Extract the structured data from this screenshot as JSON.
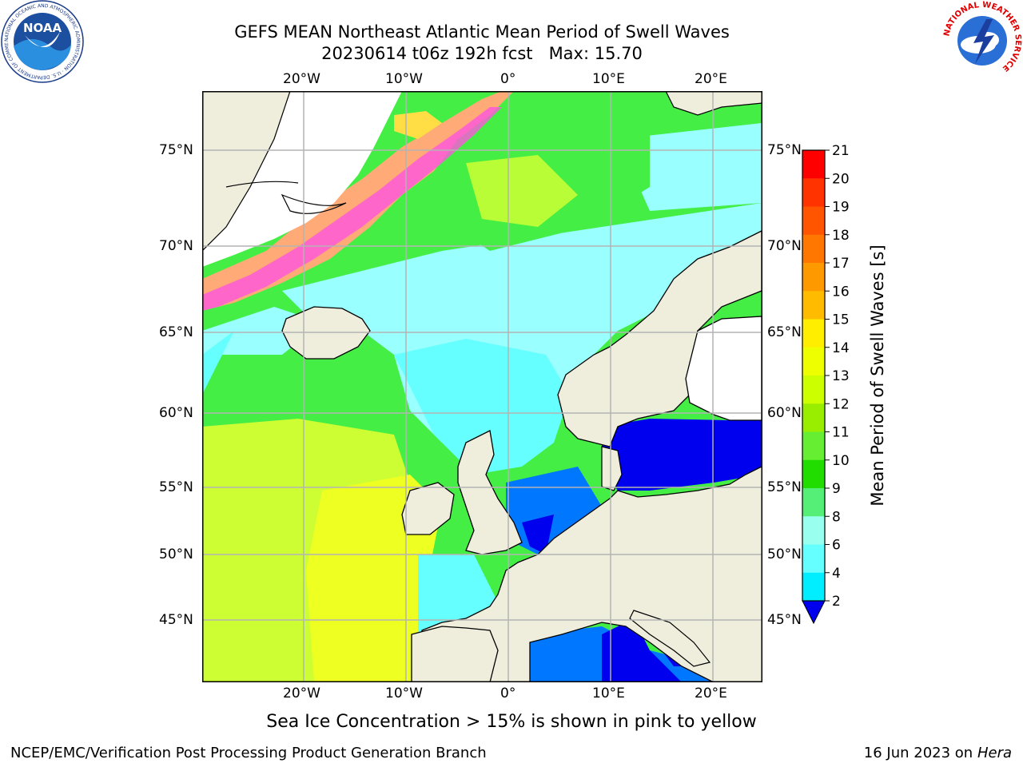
{
  "header": {
    "title_line1": "GEFS MEAN Northeast Atlantic Mean Period of Swell Waves",
    "title_line2": "20230614 t06z 192h fcst   Max: 15.70"
  },
  "logos": {
    "left": {
      "name": "noaa-logo",
      "text": "NOAA",
      "ring_text": "NATIONAL OCEANIC AND ATMOSPHERIC ADMINISTRATION · U.S. DEPARTMENT OF COMMERCE"
    },
    "right": {
      "name": "nws-logo",
      "ring_text": "NATIONAL WEATHER SERVICE"
    }
  },
  "map": {
    "lon_ticks_top": [
      "20°W",
      "10°W",
      "0°",
      "10°E",
      "20°E"
    ],
    "lon_ticks_bottom": [
      "20°W",
      "10°W",
      "0°",
      "10°E",
      "20°E"
    ],
    "lat_ticks_left": [
      "75°N",
      "70°N",
      "65°N",
      "60°N",
      "55°N",
      "50°N",
      "45°N"
    ],
    "lat_ticks_right": [
      "75°N",
      "70°N",
      "65°N",
      "60°N",
      "55°N",
      "50°N",
      "45°N"
    ],
    "land_color": "#efeedd",
    "grid_color": "#b4b4b4"
  },
  "colorbar": {
    "label": "Mean Period of Swell Waves [s]",
    "ticks": [
      "21",
      "20",
      "19",
      "18",
      "17",
      "16",
      "15",
      "14",
      "13",
      "12",
      "11",
      "10",
      "9",
      "8",
      "6",
      "4",
      "2"
    ],
    "colors": [
      "#ff0000",
      "#ff3300",
      "#ff5500",
      "#ff7700",
      "#ff9900",
      "#ffbb00",
      "#ffee00",
      "#eeff00",
      "#ccff00",
      "#99ee00",
      "#66ee33",
      "#22dd00",
      "#55ee77",
      "#99ffee",
      "#66ffff",
      "#00eeff",
      "#0099ff",
      "#0077ff"
    ],
    "under_color": "#0000ee"
  },
  "annotations": {
    "ice_note": "Sea Ice Concentration > 15% is shown in pink to yellow"
  },
  "footer": {
    "left": "NCEP/EMC/Verification Post Processing Product Generation Branch",
    "right_date": "16 Jun 2023 on",
    "right_host": "Hera"
  }
}
